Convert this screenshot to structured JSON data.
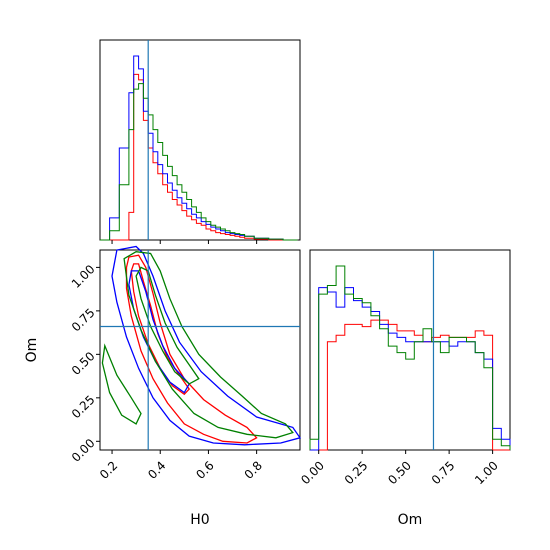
{
  "chart_data": {
    "type": "corner",
    "parameters": [
      "H0",
      "Om"
    ],
    "xlabel_bottom_left": "H0",
    "xlabel_bottom_right": "Om",
    "ylabel_left": "Om",
    "truth": {
      "H0": 0.35,
      "Om": 0.66
    },
    "colors": {
      "red": "#ff0000",
      "blue": "#0000ff",
      "green": "#008000",
      "truth": "#1f77b4"
    },
    "H0_axis": {
      "lim": [
        0.15,
        0.98
      ],
      "ticks": [
        "0.2",
        "0.4",
        "0.6",
        "0.8"
      ]
    },
    "Om_axis": {
      "lim": [
        -0.05,
        1.1
      ],
      "ticks": [
        "0.00",
        "0.25",
        "0.50",
        "0.75",
        "1.00"
      ]
    },
    "H0_hist": {
      "bin_edges": [
        0.15,
        0.19,
        0.23,
        0.27,
        0.29,
        0.31,
        0.33,
        0.35,
        0.37,
        0.39,
        0.41,
        0.43,
        0.45,
        0.47,
        0.49,
        0.51,
        0.53,
        0.55,
        0.57,
        0.59,
        0.61,
        0.63,
        0.65,
        0.67,
        0.69,
        0.71,
        0.73,
        0.75,
        0.79,
        0.85,
        0.91,
        0.97
      ],
      "series": [
        {
          "color": "red",
          "counts": [
            0,
            0,
            0,
            0.15,
            0.9,
            0.87,
            0.65,
            0.5,
            0.42,
            0.36,
            0.3,
            0.26,
            0.22,
            0.19,
            0.16,
            0.13,
            0.11,
            0.09,
            0.08,
            0.06,
            0.05,
            0.04,
            0.035,
            0.03,
            0.025,
            0.02,
            0.015,
            0.01,
            0.005,
            0,
            0
          ]
        },
        {
          "color": "blue",
          "counts": [
            0,
            0.12,
            0.5,
            0.8,
            1.0,
            0.93,
            0.7,
            0.58,
            0.48,
            0.41,
            0.36,
            0.31,
            0.27,
            0.23,
            0.2,
            0.17,
            0.14,
            0.12,
            0.1,
            0.085,
            0.07,
            0.06,
            0.05,
            0.04,
            0.035,
            0.03,
            0.025,
            0.02,
            0.01,
            0.005,
            0
          ]
        },
        {
          "color": "green",
          "counts": [
            0,
            0.05,
            0.3,
            0.6,
            0.82,
            0.85,
            0.77,
            0.68,
            0.6,
            0.53,
            0.46,
            0.4,
            0.35,
            0.3,
            0.26,
            0.22,
            0.18,
            0.15,
            0.12,
            0.1,
            0.08,
            0.07,
            0.06,
            0.05,
            0.04,
            0.035,
            0.03,
            0.02,
            0.01,
            0.005,
            0
          ]
        }
      ]
    },
    "Om_hist": {
      "bin_edges": [
        -0.05,
        0.0,
        0.05,
        0.1,
        0.15,
        0.2,
        0.25,
        0.3,
        0.35,
        0.4,
        0.45,
        0.5,
        0.55,
        0.6,
        0.65,
        0.7,
        0.75,
        0.8,
        0.85,
        0.9,
        0.95,
        1.0,
        1.05,
        1.1
      ],
      "series": [
        {
          "color": "red",
          "counts": [
            0,
            0,
            0.5,
            0.53,
            0.58,
            0.58,
            0.57,
            0.6,
            0.6,
            0.58,
            0.55,
            0.55,
            0.53,
            0.5,
            0.52,
            0.53,
            0.52,
            0.52,
            0.52,
            0.55,
            0.53,
            0,
            0
          ]
        },
        {
          "color": "blue",
          "counts": [
            0,
            0.75,
            0.73,
            0.66,
            0.75,
            0.69,
            0.66,
            0.64,
            0.58,
            0.54,
            0.52,
            0.5,
            0.5,
            0.5,
            0.5,
            0.5,
            0.48,
            0.5,
            0.5,
            0.45,
            0.42,
            0.1,
            0.05
          ]
        },
        {
          "color": "green",
          "counts": [
            0.05,
            0.72,
            0.76,
            0.85,
            0.72,
            0.7,
            0.68,
            0.62,
            0.56,
            0.48,
            0.45,
            0.42,
            0.5,
            0.56,
            0.5,
            0.45,
            0.52,
            0.52,
            0.5,
            0.45,
            0.38,
            0.05,
            0.02
          ]
        }
      ]
    },
    "contours": [
      {
        "color": "red",
        "points": [
          [
            0.26,
            1.0
          ],
          [
            0.27,
            1.06
          ],
          [
            0.31,
            1.07
          ],
          [
            0.34,
            1.0
          ],
          [
            0.37,
            0.85
          ],
          [
            0.4,
            0.68
          ],
          [
            0.44,
            0.5
          ],
          [
            0.5,
            0.36
          ],
          [
            0.58,
            0.24
          ],
          [
            0.67,
            0.15
          ],
          [
            0.76,
            0.08
          ],
          [
            0.8,
            0.02
          ],
          [
            0.76,
            -0.01
          ],
          [
            0.66,
            0.0
          ],
          [
            0.58,
            0.04
          ],
          [
            0.5,
            0.1
          ],
          [
            0.43,
            0.22
          ],
          [
            0.37,
            0.36
          ],
          [
            0.32,
            0.52
          ],
          [
            0.28,
            0.72
          ],
          [
            0.26,
            0.88
          ],
          [
            0.26,
            1.0
          ]
        ]
      },
      {
        "color": "red",
        "points": [
          [
            0.28,
            0.98
          ],
          [
            0.29,
            1.02
          ],
          [
            0.31,
            1.02
          ],
          [
            0.33,
            0.92
          ],
          [
            0.36,
            0.78
          ],
          [
            0.39,
            0.62
          ],
          [
            0.43,
            0.48
          ],
          [
            0.48,
            0.38
          ],
          [
            0.52,
            0.3
          ],
          [
            0.5,
            0.27
          ],
          [
            0.45,
            0.32
          ],
          [
            0.4,
            0.42
          ],
          [
            0.35,
            0.56
          ],
          [
            0.31,
            0.72
          ],
          [
            0.29,
            0.86
          ],
          [
            0.28,
            0.98
          ]
        ]
      },
      {
        "color": "blue",
        "points": [
          [
            0.2,
            0.95
          ],
          [
            0.22,
            1.1
          ],
          [
            0.3,
            1.12
          ],
          [
            0.33,
            1.08
          ],
          [
            0.37,
            0.95
          ],
          [
            0.42,
            0.75
          ],
          [
            0.48,
            0.57
          ],
          [
            0.57,
            0.4
          ],
          [
            0.68,
            0.26
          ],
          [
            0.8,
            0.14
          ],
          [
            0.95,
            0.08
          ],
          [
            0.98,
            0.02
          ],
          [
            0.9,
            -0.01
          ],
          [
            0.75,
            -0.02
          ],
          [
            0.62,
            -0.01
          ],
          [
            0.52,
            0.03
          ],
          [
            0.44,
            0.12
          ],
          [
            0.37,
            0.25
          ],
          [
            0.31,
            0.42
          ],
          [
            0.26,
            0.6
          ],
          [
            0.22,
            0.8
          ],
          [
            0.2,
            0.95
          ]
        ]
      },
      {
        "color": "blue",
        "points": [
          [
            0.27,
            0.9
          ],
          [
            0.28,
            0.98
          ],
          [
            0.31,
            0.98
          ],
          [
            0.34,
            0.86
          ],
          [
            0.37,
            0.7
          ],
          [
            0.41,
            0.55
          ],
          [
            0.46,
            0.42
          ],
          [
            0.52,
            0.33
          ],
          [
            0.5,
            0.28
          ],
          [
            0.44,
            0.34
          ],
          [
            0.38,
            0.46
          ],
          [
            0.33,
            0.6
          ],
          [
            0.29,
            0.76
          ],
          [
            0.27,
            0.9
          ]
        ]
      },
      {
        "color": "green",
        "points": [
          [
            0.25,
            1.05
          ],
          [
            0.3,
            1.09
          ],
          [
            0.36,
            1.08
          ],
          [
            0.4,
            0.98
          ],
          [
            0.44,
            0.82
          ],
          [
            0.49,
            0.66
          ],
          [
            0.56,
            0.5
          ],
          [
            0.65,
            0.37
          ],
          [
            0.74,
            0.26
          ],
          [
            0.82,
            0.16
          ],
          [
            0.92,
            0.1
          ],
          [
            0.95,
            0.05
          ],
          [
            0.88,
            0.02
          ],
          [
            0.76,
            0.04
          ],
          [
            0.64,
            0.08
          ],
          [
            0.54,
            0.16
          ],
          [
            0.45,
            0.3
          ],
          [
            0.38,
            0.46
          ],
          [
            0.32,
            0.64
          ],
          [
            0.27,
            0.84
          ],
          [
            0.25,
            1.05
          ]
        ]
      },
      {
        "color": "green",
        "points": [
          [
            0.3,
            0.95
          ],
          [
            0.32,
            1.0
          ],
          [
            0.35,
            0.98
          ],
          [
            0.38,
            0.84
          ],
          [
            0.42,
            0.68
          ],
          [
            0.47,
            0.54
          ],
          [
            0.53,
            0.42
          ],
          [
            0.56,
            0.36
          ],
          [
            0.52,
            0.33
          ],
          [
            0.46,
            0.4
          ],
          [
            0.41,
            0.52
          ],
          [
            0.36,
            0.66
          ],
          [
            0.32,
            0.82
          ],
          [
            0.3,
            0.95
          ]
        ]
      },
      {
        "color": "green",
        "points": [
          [
            0.17,
            0.55
          ],
          [
            0.22,
            0.38
          ],
          [
            0.28,
            0.25
          ],
          [
            0.32,
            0.16
          ],
          [
            0.3,
            0.1
          ],
          [
            0.24,
            0.15
          ],
          [
            0.19,
            0.28
          ],
          [
            0.16,
            0.45
          ],
          [
            0.17,
            0.55
          ]
        ]
      }
    ]
  }
}
